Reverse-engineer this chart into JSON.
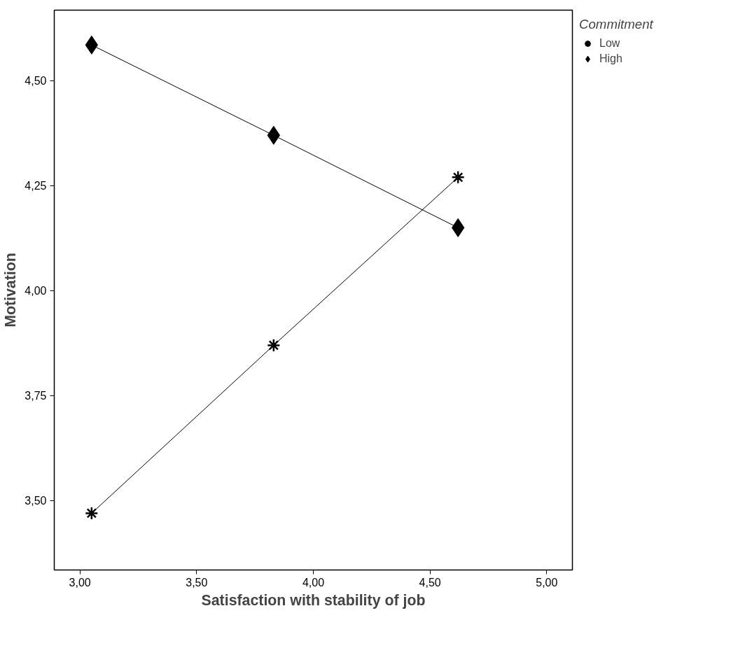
{
  "chart_data": {
    "type": "line",
    "xlabel": "Satisfaction with stability of job",
    "ylabel": "Motivation",
    "legend_title": "Commitment",
    "x": [
      3.05,
      3.83,
      4.62
    ],
    "series": [
      {
        "name": "Low",
        "color": "#000000",
        "marker": "cross",
        "values": [
          3.47,
          3.87,
          4.27
        ]
      },
      {
        "name": "High",
        "color": "#000000",
        "marker": "diamond",
        "values": [
          4.585,
          4.37,
          4.15
        ]
      }
    ],
    "xlim": [
      2.89,
      5.11
    ],
    "ylim": [
      3.335,
      4.668
    ],
    "xticks": [
      {
        "value": 3,
        "label": "3,00"
      },
      {
        "value": 3.5,
        "label": "3,50"
      },
      {
        "value": 4,
        "label": "4,00"
      },
      {
        "value": 4.5,
        "label": "4,50"
      },
      {
        "value": 5,
        "label": "5,00"
      }
    ],
    "yticks": [
      {
        "value": 3.5,
        "label": "3,50"
      },
      {
        "value": 3.75,
        "label": "3,75"
      },
      {
        "value": 4,
        "label": "4,00"
      },
      {
        "value": 4.25,
        "label": "4,25"
      },
      {
        "value": 4.5,
        "label": "4,50"
      }
    ],
    "grid": false,
    "legend": "top right",
    "line_style": "solid"
  }
}
